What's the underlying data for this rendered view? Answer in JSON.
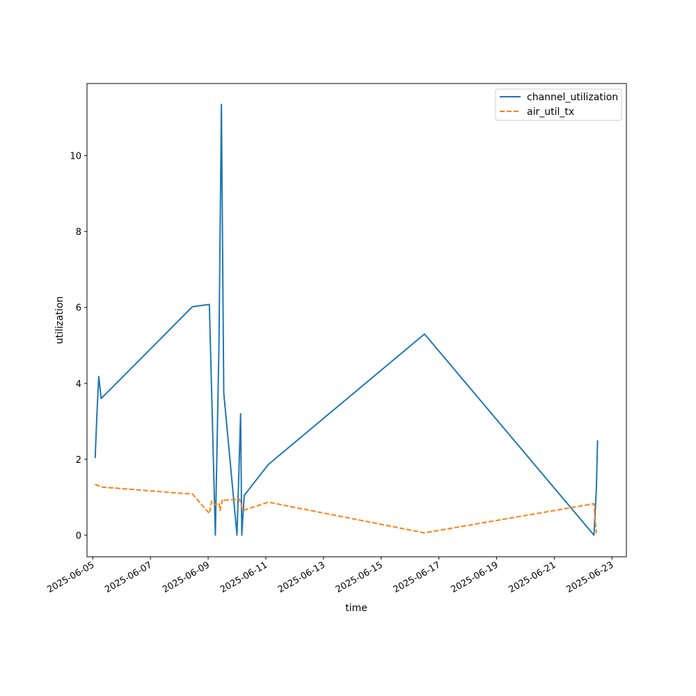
{
  "chart_data": {
    "type": "line",
    "title": "",
    "xlabel": "time",
    "ylabel": "utilization",
    "x_type": "datetime",
    "xlim": [
      "2025-06-04T19:12:00",
      "2025-06-23T12:00:00"
    ],
    "ylim": [
      -0.57,
      11.9
    ],
    "x_ticks": [
      "2025-06-05",
      "2025-06-07",
      "2025-06-09",
      "2025-06-11",
      "2025-06-13",
      "2025-06-15",
      "2025-06-17",
      "2025-06-19",
      "2025-06-21",
      "2025-06-23"
    ],
    "y_ticks": [
      0,
      2,
      4,
      6,
      8,
      10
    ],
    "grid": false,
    "legend_position": "top-right",
    "series": [
      {
        "name": "channel_utilization",
        "color": "#1f77b4",
        "linestyle": "solid",
        "points": [
          {
            "x": "2025-06-05T02:00:00",
            "y": 2.03
          },
          {
            "x": "2025-06-05T03:30:00",
            "y": 3.2
          },
          {
            "x": "2025-06-05T05:00:00",
            "y": 4.18
          },
          {
            "x": "2025-06-05T07:00:00",
            "y": 3.6
          },
          {
            "x": "2025-06-08T11:00:00",
            "y": 6.02
          },
          {
            "x": "2025-06-09T01:00:00",
            "y": 6.08
          },
          {
            "x": "2025-06-09T06:00:00",
            "y": 0.0
          },
          {
            "x": "2025-06-09T09:00:00",
            "y": 5.0
          },
          {
            "x": "2025-06-09T11:00:00",
            "y": 11.35
          },
          {
            "x": "2025-06-09T13:00:00",
            "y": 3.75
          },
          {
            "x": "2025-06-10T00:00:00",
            "y": 0.0
          },
          {
            "x": "2025-06-10T03:00:00",
            "y": 3.2
          },
          {
            "x": "2025-06-10T04:00:00",
            "y": 0.0
          },
          {
            "x": "2025-06-10T06:00:00",
            "y": 1.05
          },
          {
            "x": "2025-06-11T02:00:00",
            "y": 1.86
          },
          {
            "x": "2025-06-16T12:00:00",
            "y": 5.3
          },
          {
            "x": "2025-06-22T09:00:00",
            "y": 0.0
          },
          {
            "x": "2025-06-22T11:00:00",
            "y": 1.2
          },
          {
            "x": "2025-06-22T12:00:00",
            "y": 2.5
          }
        ]
      },
      {
        "name": "air_util_tx",
        "color": "#ff7f0e",
        "linestyle": "dashed",
        "points": [
          {
            "x": "2025-06-05T02:00:00",
            "y": 1.34
          },
          {
            "x": "2025-06-05T07:00:00",
            "y": 1.27
          },
          {
            "x": "2025-06-08T11:00:00",
            "y": 1.08
          },
          {
            "x": "2025-06-09T01:00:00",
            "y": 0.57
          },
          {
            "x": "2025-06-09T03:00:00",
            "y": 0.9
          },
          {
            "x": "2025-06-09T06:00:00",
            "y": 0.8
          },
          {
            "x": "2025-06-09T09:00:00",
            "y": 0.85
          },
          {
            "x": "2025-06-09T10:00:00",
            "y": 0.65
          },
          {
            "x": "2025-06-09T12:00:00",
            "y": 0.95
          },
          {
            "x": "2025-06-09T14:00:00",
            "y": 0.92
          },
          {
            "x": "2025-06-10T02:00:00",
            "y": 0.95
          },
          {
            "x": "2025-06-10T05:00:00",
            "y": 0.65
          },
          {
            "x": "2025-06-11T02:00:00",
            "y": 0.87
          },
          {
            "x": "2025-06-16T12:00:00",
            "y": 0.06
          },
          {
            "x": "2025-06-22T09:00:00",
            "y": 0.83
          },
          {
            "x": "2025-06-22T11:00:00",
            "y": 0.05
          }
        ]
      }
    ]
  }
}
